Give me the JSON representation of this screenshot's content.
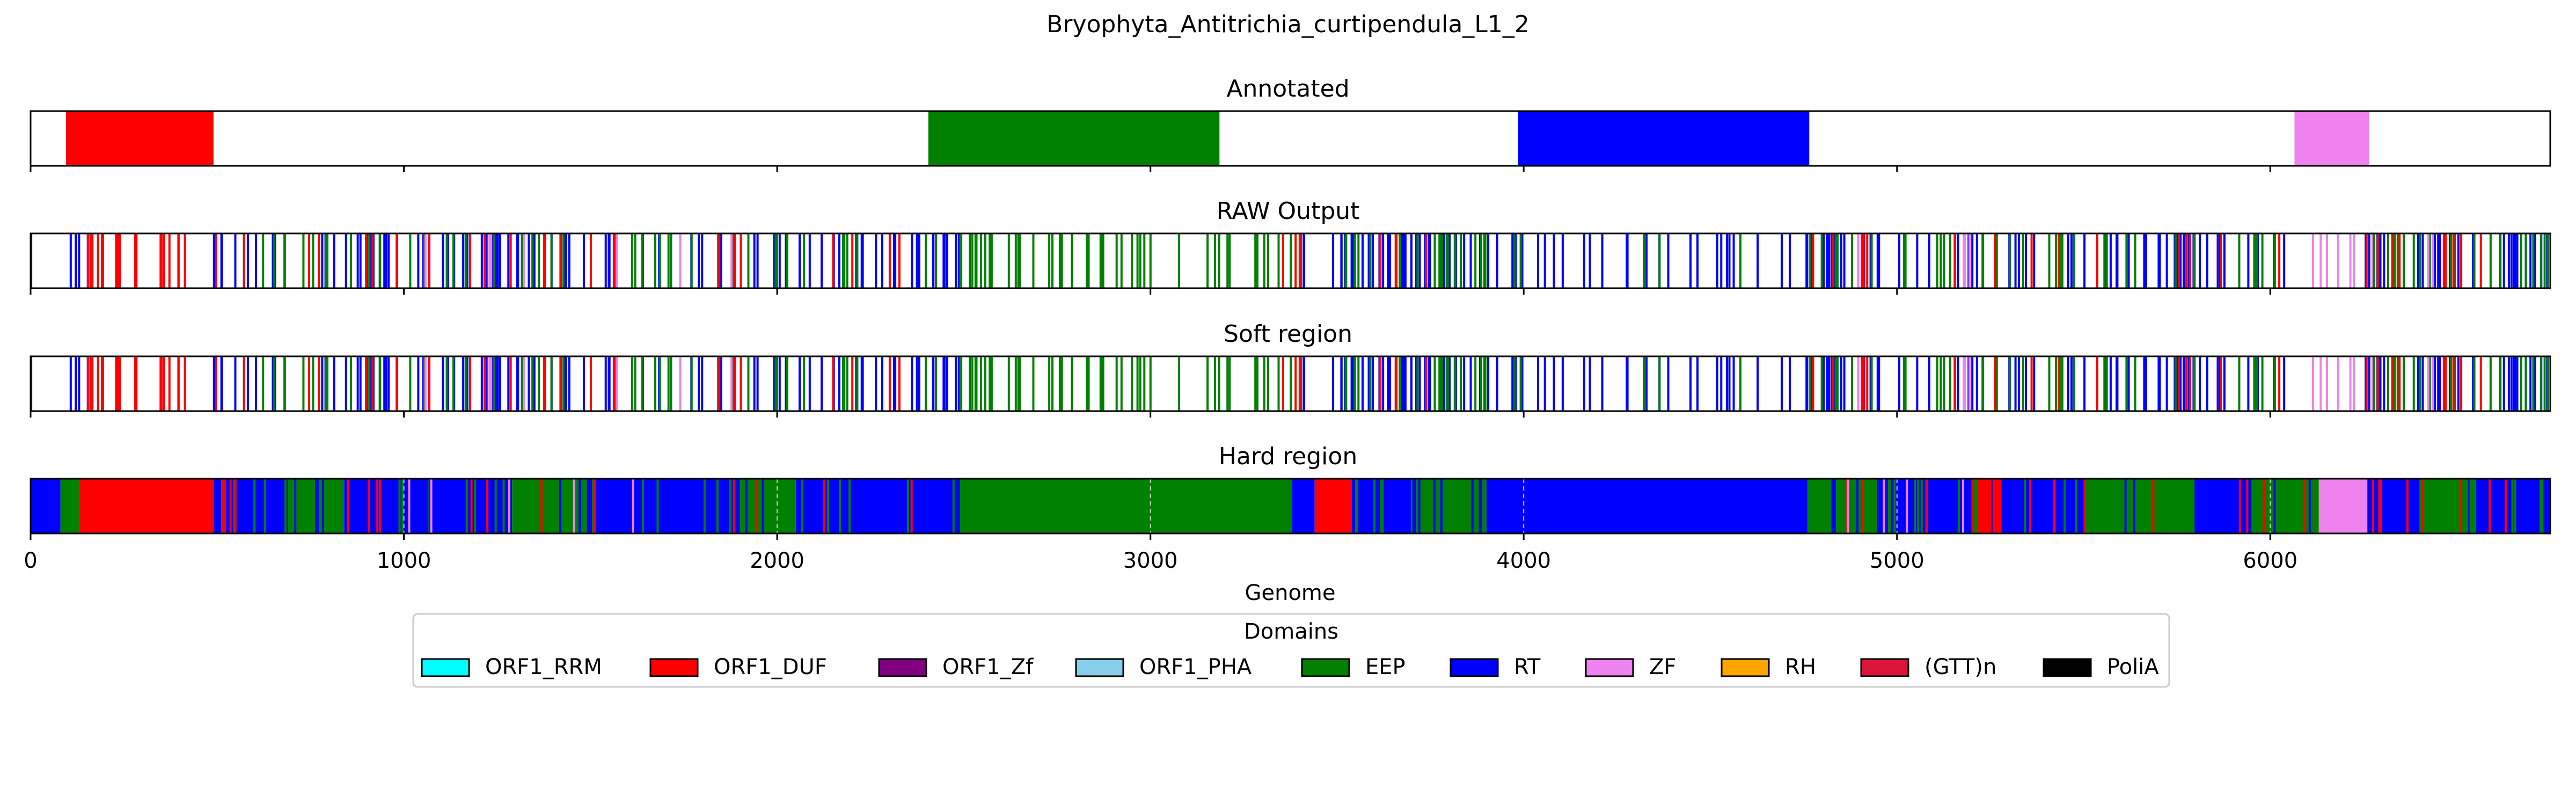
{
  "figure": {
    "title": "Bryophyta_Antitrichia_curtipendula_L1_2"
  },
  "colors": {
    "ORF1_RRM": "#00ffff",
    "ORF1_DUF": "#ff0000",
    "ORF1_Zf": "#800080",
    "ORF1_PHA": "#87ceeb",
    "EEP": "#008000",
    "RT": "#0000ff",
    "ZF": "#ee82ee",
    "RH": "#ffa500",
    "(GTT)n": "#dc143c",
    "PoliA": "#000000"
  },
  "chart_data": {
    "type": "genome-track",
    "xlabel": "Genome",
    "xlim": [
      0,
      6750
    ],
    "xticks": [
      0,
      1000,
      2000,
      3000,
      4000,
      5000,
      6000
    ],
    "grid": "dashed vertical lines at ticks (hard region panel)",
    "legend": {
      "title": "Domains",
      "placement": "bottom-center",
      "entries": [
        "ORF1_RRM",
        "ORF1_DUF",
        "ORF1_Zf",
        "ORF1_PHA",
        "EEP",
        "RT",
        "ZF",
        "RH",
        "(GTT)n",
        "PoliA"
      ]
    },
    "panels": [
      {
        "title": "Annotated",
        "kind": "segments",
        "segments": [
          {
            "domain": "ORF1_DUF",
            "start": 95,
            "end": 490
          },
          {
            "domain": "EEP",
            "start": 2405,
            "end": 3185
          },
          {
            "domain": "RT",
            "start": 3985,
            "end": 4765
          },
          {
            "domain": "ZF",
            "start": 6065,
            "end": 6265
          }
        ]
      },
      {
        "title": "RAW Output",
        "kind": "lines",
        "regions": [
          {
            "domain": "RT",
            "start": 0,
            "end": 200,
            "n": 6
          },
          {
            "domain": "ORF1_DUF",
            "start": 150,
            "end": 520,
            "n": 20
          },
          {
            "domain": "RT",
            "start": 480,
            "end": 1350,
            "n": 48
          },
          {
            "domain": "EEP",
            "start": 560,
            "end": 1350,
            "n": 22
          },
          {
            "domain": "ORF1_DUF",
            "start": 560,
            "end": 1350,
            "n": 10
          },
          {
            "domain": "ZF",
            "start": 1050,
            "end": 1450,
            "n": 4
          },
          {
            "domain": "RT",
            "start": 1350,
            "end": 2500,
            "n": 50
          },
          {
            "domain": "EEP",
            "start": 1350,
            "end": 2500,
            "n": 28
          },
          {
            "domain": "ORF1_DUF",
            "start": 1350,
            "end": 2500,
            "n": 12
          },
          {
            "domain": "ZF",
            "start": 1550,
            "end": 2300,
            "n": 3
          },
          {
            "domain": "EEP",
            "start": 2500,
            "end": 3400,
            "n": 48
          },
          {
            "domain": "RT",
            "start": 3400,
            "end": 3500,
            "n": 3
          },
          {
            "domain": "ORF1_DUF",
            "start": 3350,
            "end": 3480,
            "n": 3
          },
          {
            "domain": "RT",
            "start": 3500,
            "end": 4000,
            "n": 45
          },
          {
            "domain": "EEP",
            "start": 3500,
            "end": 4000,
            "n": 22
          },
          {
            "domain": "ORF1_DUF",
            "start": 3600,
            "end": 3900,
            "n": 3
          },
          {
            "domain": "RT",
            "start": 4000,
            "end": 4750,
            "n": 22
          },
          {
            "domain": "EEP",
            "start": 4300,
            "end": 4700,
            "n": 4
          },
          {
            "domain": "RT",
            "start": 4750,
            "end": 6050,
            "n": 60
          },
          {
            "domain": "EEP",
            "start": 4750,
            "end": 6050,
            "n": 38
          },
          {
            "domain": "ORF1_DUF",
            "start": 4750,
            "end": 6050,
            "n": 16
          },
          {
            "domain": "ZF",
            "start": 4850,
            "end": 5600,
            "n": 3
          },
          {
            "domain": "ZF",
            "start": 6100,
            "end": 6300,
            "n": 7
          },
          {
            "domain": "RT",
            "start": 6250,
            "end": 6750,
            "n": 35
          },
          {
            "domain": "EEP",
            "start": 6250,
            "end": 6750,
            "n": 22
          },
          {
            "domain": "ORF1_DUF",
            "start": 6250,
            "end": 6750,
            "n": 10
          },
          {
            "domain": "ZF",
            "start": 6400,
            "end": 6700,
            "n": 3
          }
        ]
      },
      {
        "title": "Soft region",
        "kind": "lines",
        "same_as": 1
      },
      {
        "title": "Hard region",
        "kind": "segments",
        "segments": [
          {
            "domain": "RT",
            "start": 0,
            "end": 80
          },
          {
            "domain": "EEP",
            "start": 80,
            "end": 130
          },
          {
            "domain": "ORF1_DUF",
            "start": 130,
            "end": 490
          },
          {
            "domain": "RT",
            "start": 490,
            "end": 690
          },
          {
            "domain": "EEP",
            "start": 690,
            "end": 840
          },
          {
            "domain": "RT",
            "start": 840,
            "end": 1290
          },
          {
            "domain": "EEP",
            "start": 1290,
            "end": 1490
          },
          {
            "domain": "RT",
            "start": 1490,
            "end": 1900
          },
          {
            "domain": "EEP",
            "start": 1900,
            "end": 2050
          },
          {
            "domain": "RT",
            "start": 2050,
            "end": 2490
          },
          {
            "domain": "EEP",
            "start": 2490,
            "end": 3380
          },
          {
            "domain": "RT",
            "start": 3380,
            "end": 3440
          },
          {
            "domain": "ORF1_DUF",
            "start": 3440,
            "end": 3540
          },
          {
            "domain": "RT",
            "start": 3540,
            "end": 3700
          },
          {
            "domain": "EEP",
            "start": 3700,
            "end": 3900
          },
          {
            "domain": "RT",
            "start": 3900,
            "end": 4760
          },
          {
            "domain": "EEP",
            "start": 4760,
            "end": 4950
          },
          {
            "domain": "RT",
            "start": 4950,
            "end": 5200
          },
          {
            "domain": "ORF1_DUF",
            "start": 5200,
            "end": 5280
          },
          {
            "domain": "RT",
            "start": 5280,
            "end": 5500
          },
          {
            "domain": "EEP",
            "start": 5500,
            "end": 5800
          },
          {
            "domain": "RT",
            "start": 5800,
            "end": 5950
          },
          {
            "domain": "EEP",
            "start": 5950,
            "end": 6130
          },
          {
            "domain": "ZF",
            "start": 6130,
            "end": 6260
          },
          {
            "domain": "RT",
            "start": 6260,
            "end": 6400
          },
          {
            "domain": "EEP",
            "start": 6400,
            "end": 6550
          },
          {
            "domain": "RT",
            "start": 6550,
            "end": 6750
          }
        ],
        "stripes": [
          {
            "domain": "EEP",
            "start": 490,
            "end": 2490,
            "n": 36
          },
          {
            "domain": "RT",
            "start": 690,
            "end": 2050,
            "n": 18
          },
          {
            "domain": "ORF1_DUF",
            "start": 490,
            "end": 2490,
            "n": 16
          },
          {
            "domain": "ZF",
            "start": 1000,
            "end": 1800,
            "n": 5
          },
          {
            "domain": "EEP",
            "start": 3540,
            "end": 3900,
            "n": 10
          },
          {
            "domain": "RT",
            "start": 3700,
            "end": 3900,
            "n": 8
          },
          {
            "domain": "RT",
            "start": 4760,
            "end": 6130,
            "n": 20
          },
          {
            "domain": "EEP",
            "start": 4950,
            "end": 5500,
            "n": 14
          },
          {
            "domain": "ORF1_DUF",
            "start": 4800,
            "end": 6100,
            "n": 14
          },
          {
            "domain": "ZF",
            "start": 4850,
            "end": 5200,
            "n": 4
          },
          {
            "domain": "RT",
            "start": 6260,
            "end": 6750,
            "n": 8
          },
          {
            "domain": "EEP",
            "start": 6400,
            "end": 6750,
            "n": 6
          },
          {
            "domain": "ORF1_DUF",
            "start": 6260,
            "end": 6750,
            "n": 8
          }
        ]
      }
    ]
  }
}
